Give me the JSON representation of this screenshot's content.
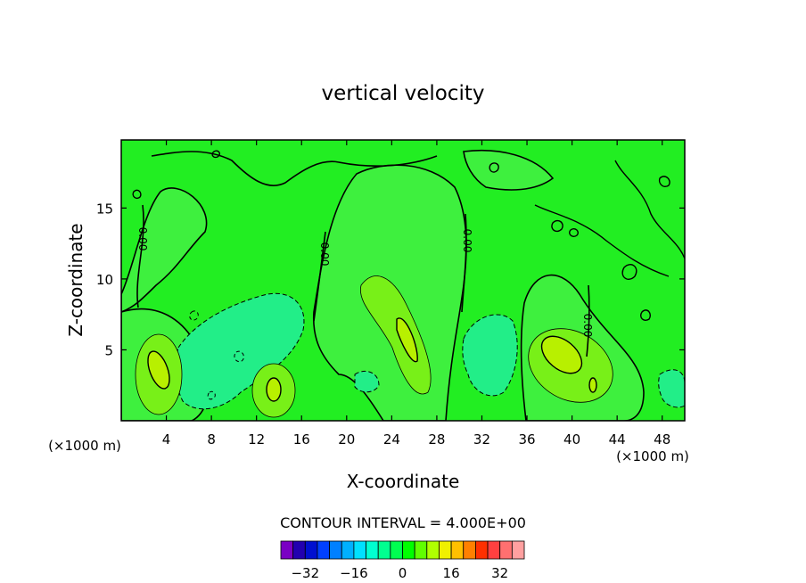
{
  "chart_data": {
    "type": "contour",
    "title": "vertical velocity",
    "xlabel": "X-coordinate",
    "ylabel": "Z-coordinate",
    "x_unit": "(×1000 m)",
    "y_unit": "(×1000 m)",
    "xlim": [
      0,
      50
    ],
    "ylim": [
      0,
      19.8
    ],
    "x_ticks": [
      4,
      8,
      12,
      16,
      20,
      24,
      28,
      32,
      36,
      40,
      44,
      48
    ],
    "y_ticks": [
      5,
      10,
      15
    ],
    "contour_interval_text": "CONTOUR INTERVAL = 4.000E+00",
    "contour_labels": [
      "0.00",
      "0.00",
      "0.00",
      "0.00"
    ],
    "colorbar": {
      "tick_labels": [
        "−32",
        "−16",
        "0",
        "16",
        "32"
      ],
      "tick_values": [
        -32,
        -16,
        0,
        16,
        32
      ],
      "levels_min": -40,
      "levels_max": 40,
      "colors": [
        "#7a00c4",
        "#2200b0",
        "#0010d0",
        "#0040ff",
        "#0080ff",
        "#00b0ff",
        "#00e0ff",
        "#00ffd0",
        "#00ff90",
        "#00ff50",
        "#00ff00",
        "#60ff00",
        "#b0ff00",
        "#f0f000",
        "#ffc000",
        "#ff8000",
        "#ff3000",
        "#ff4040",
        "#ff7070",
        "#ffa0a0"
      ]
    },
    "field": {
      "background": "#22ee22",
      "features": [
        {
          "kind": "updraft",
          "x": 3.1,
          "z": 3.8,
          "value": 14
        },
        {
          "kind": "updraft",
          "x": 13.5,
          "z": 2.4,
          "value": 13
        },
        {
          "kind": "updraft",
          "x": 25.2,
          "z": 6.0,
          "value": 12
        },
        {
          "kind": "updraft",
          "x": 38.8,
          "z": 4.8,
          "value": 14
        },
        {
          "kind": "downdraft",
          "x": 11.0,
          "z": 5.0,
          "value": -6
        },
        {
          "kind": "downdraft",
          "x": 32.5,
          "z": 5.5,
          "value": -6
        },
        {
          "kind": "downdraft",
          "x": 48.5,
          "z": 2.5,
          "value": -5
        }
      ]
    }
  }
}
